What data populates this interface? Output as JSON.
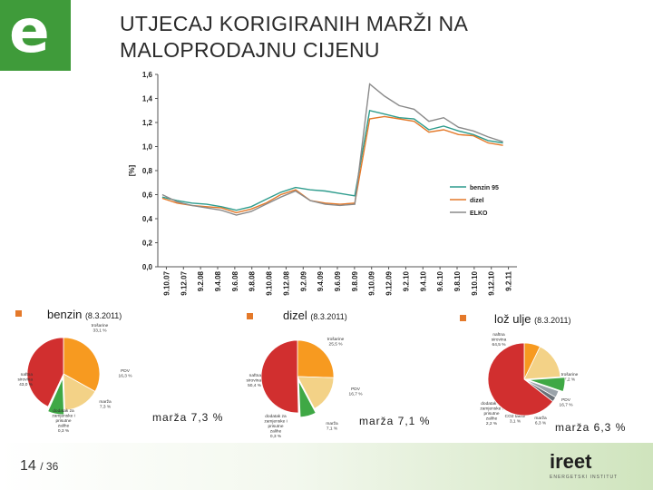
{
  "logo": {
    "letter": "e"
  },
  "title": "UTJECAJ KORIGIRANIH MARŽI NA MALOPRODAJNU CIJENU",
  "chart_data": [
    {
      "type": "line",
      "title": "",
      "ylabel": "[%]",
      "ylim": [
        0,
        1.6
      ],
      "yticks": [
        0,
        0.2,
        0.4,
        0.6,
        0.8,
        1.0,
        1.2,
        1.4,
        1.6
      ],
      "ytick_labels": [
        "0,0",
        "0,2",
        "0,4",
        "0,6",
        "0,8",
        "1,0",
        "1,2",
        "1,4",
        "1,6"
      ],
      "xtick_labels": [
        "9.10.07",
        "9.12.07",
        "9.2.08",
        "9.4.08",
        "9.6.08",
        "9.8.08",
        "9.10.08",
        "9.12.08",
        "9.2.09",
        "9.4.09",
        "9.6.09",
        "9.8.09",
        "9.10.09",
        "9.12.09",
        "9.2.10",
        "9.4.10",
        "9.6.10",
        "9.8.10",
        "9.10.10",
        "9.12.10",
        "9.2.11"
      ],
      "series": [
        {
          "name": "benzin 95",
          "color": "#2e9c8d",
          "values": [
            0.58,
            0.55,
            0.53,
            0.52,
            0.5,
            0.47,
            0.5,
            0.56,
            0.62,
            0.66,
            0.64,
            0.63,
            0.61,
            0.59,
            1.3,
            1.27,
            1.24,
            1.23,
            1.14,
            1.17,
            1.13,
            1.1,
            1.05,
            1.03
          ]
        },
        {
          "name": "dizel",
          "color": "#e4792a",
          "values": [
            0.57,
            0.53,
            0.51,
            0.5,
            0.49,
            0.45,
            0.48,
            0.53,
            0.6,
            0.64,
            0.55,
            0.53,
            0.52,
            0.53,
            1.23,
            1.25,
            1.23,
            1.21,
            1.12,
            1.14,
            1.1,
            1.09,
            1.03,
            1.01
          ]
        },
        {
          "name": "ELKO",
          "color": "#8a8a8a",
          "values": [
            0.6,
            0.54,
            0.51,
            0.49,
            0.47,
            0.43,
            0.46,
            0.52,
            0.58,
            0.63,
            0.55,
            0.52,
            0.51,
            0.52,
            1.52,
            1.42,
            1.34,
            1.31,
            1.21,
            1.24,
            1.16,
            1.13,
            1.08,
            1.04
          ]
        }
      ]
    },
    {
      "type": "pie",
      "title": "benzin",
      "date": "(8.3.2011)",
      "margin_text": "marža  7,3 %",
      "slices": [
        {
          "label": "trošarine",
          "value": 33.1,
          "value_label": "33,1 %",
          "color": "#f79a20"
        },
        {
          "label": "PDV",
          "value": 16.3,
          "value_label": "16,3 %",
          "color": "#f3d287"
        },
        {
          "label": "marža",
          "value": 7.3,
          "value_label": "7,3 %",
          "color": "#3fa845"
        },
        {
          "label": "dodatak za zamjenske i prisutne zalihe",
          "value": 0.3,
          "value_label": "0,3 %",
          "color": "#8fb5d9"
        },
        {
          "label": "naftna sirovina",
          "value": 43.0,
          "value_label": "43,0 %",
          "color": "#d12f2f"
        }
      ]
    },
    {
      "type": "pie",
      "title": "dizel",
      "date": "(8.3.2011)",
      "margin_text": "marža  7,1 %",
      "slices": [
        {
          "label": "trošarine",
          "value": 25.5,
          "value_label": "25,5 %",
          "color": "#f79a20"
        },
        {
          "label": "PDV",
          "value": 16.7,
          "value_label": "16,7 %",
          "color": "#f3d287"
        },
        {
          "label": "marža",
          "value": 7.1,
          "value_label": "7,1 %",
          "color": "#3fa845"
        },
        {
          "label": "dodatak za zamjenske i prisutne zalihe",
          "value": 0.3,
          "value_label": "0,3 %",
          "color": "#8fb5d9"
        },
        {
          "label": "naftna sirovina",
          "value": 50.4,
          "value_label": "50,4 %",
          "color": "#d12f2f"
        }
      ]
    },
    {
      "type": "pie",
      "title": "lož ulje",
      "date": "(8.3.2011)",
      "margin_text": "marža  6,3 %",
      "slices": [
        {
          "label": "trošarine",
          "value": 7.2,
          "value_label": "7,2 %",
          "color": "#f79a20"
        },
        {
          "label": "PDV",
          "value": 16.7,
          "value_label": "16,7 %",
          "color": "#f3d287"
        },
        {
          "label": "marža",
          "value": 6.3,
          "value_label": "6,3 %",
          "color": "#3fa845"
        },
        {
          "label": "CO2 takse",
          "value": 3.1,
          "value_label": "3,1 %",
          "color": "#9aa3aa"
        },
        {
          "label": "dodatak za zamjenske i prisutne zalihe",
          "value": 2.2,
          "value_label": "2,2 %",
          "color": "#6a7178"
        },
        {
          "label": "naftna sirovina",
          "value": 64.5,
          "value_label": "64,5 %",
          "color": "#d12f2f"
        }
      ]
    }
  ],
  "footer": {
    "page": "14",
    "total": "/ 36",
    "logo_text": "ireet",
    "logo_sub": "ENERGETSKI INSTITUT"
  }
}
